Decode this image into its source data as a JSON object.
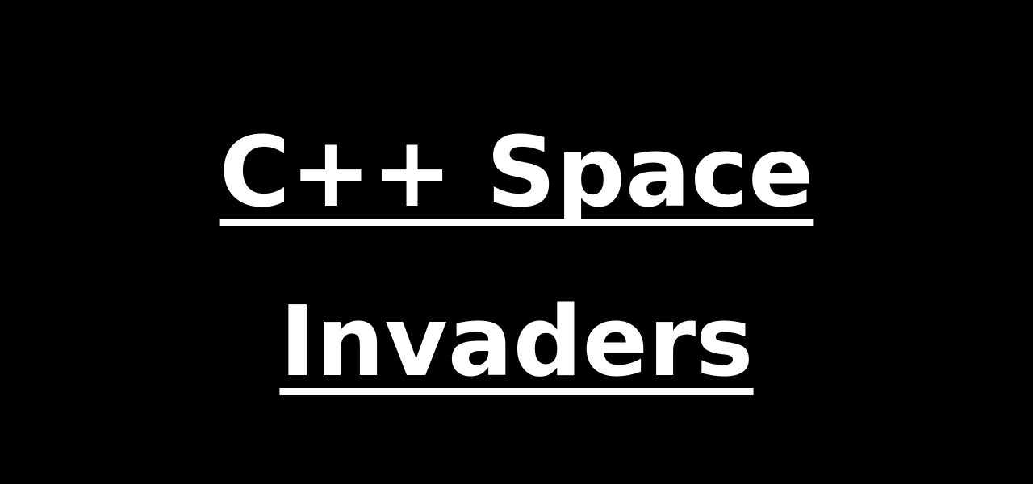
{
  "title": {
    "line1": "C++ Space",
    "line2": "Invaders"
  },
  "colors": {
    "background": "#000000",
    "text": "#ffffff"
  }
}
